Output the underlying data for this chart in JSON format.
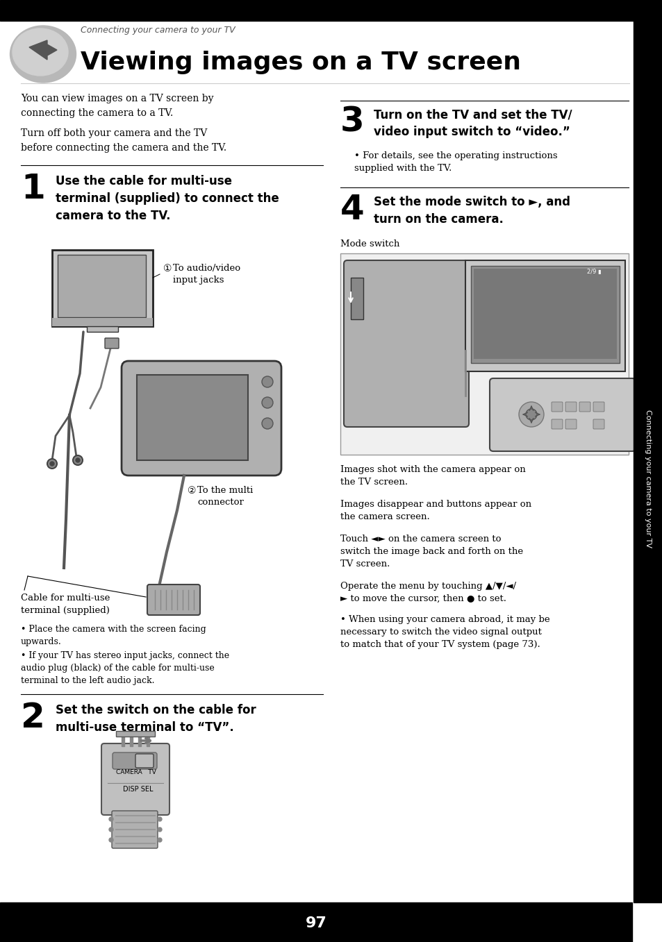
{
  "page_number": "97",
  "bg_color": "#ffffff",
  "header_italic_text": "Connecting your camera to your TV",
  "header_bold_text": "Viewing images on a TV screen",
  "intro_text1": "You can view images on a TV screen by\nconnecting the camera to a TV.",
  "intro_text2": "Turn off both your camera and the TV\nbefore connecting the camera and the TV.",
  "step1_num": "1",
  "step1_text": "Use the cable for multi-use\nterminal (supplied) to connect the\ncamera to the TV.",
  "step1_label1_circ": "①",
  "step1_label1_text": "To audio/video\ninput jacks",
  "step1_label2_circ": "②",
  "step1_label2_text": "To the multi\nconnector",
  "step1_label3": "Cable for multi-use\nterminal (supplied)",
  "step1_bullet1": "Place the camera with the screen facing\nupwards.",
  "step1_bullet2": "If your TV has stereo input jacks, connect the\naudio plug (black) of the cable for multi-use\nterminal to the left audio jack.",
  "step2_num": "2",
  "step2_text": "Set the switch on the cable for\nmulti-use terminal to “TV”.",
  "step3_num": "3",
  "step3_text": "Turn on the TV and set the TV/\nvideo input switch to “video.”",
  "step3_bullet": "For details, see the operating instructions\nsupplied with the TV.",
  "step4_num": "4",
  "step4_text1": "Set the mode switch to ",
  "step4_text2": ", and",
  "step4_text3": "turn on the camera.",
  "step4_label": "Mode switch",
  "body_text1": "Images shot with the camera appear on\nthe TV screen.",
  "body_text2": "Images disappear and buttons appear on\nthe camera screen.",
  "body_text3_a": "Touch ",
  "body_text3_b": " on the camera screen to",
  "body_text3_c": "switch the image back and forth on the\nTV screen.",
  "body_text4": "Operate the menu by touching ▲/▼/◄/\n► to move the cursor, then ● to set.",
  "body_text5_bullet": "When using your camera abroad, it may be\nnecessary to switch the video signal output\nto match that of your TV system (page 73).",
  "sidebar_text": "Connecting your camera to your TV",
  "text_color": "#000000",
  "sidebar_color": "#000000",
  "top_bar_color": "#000000"
}
